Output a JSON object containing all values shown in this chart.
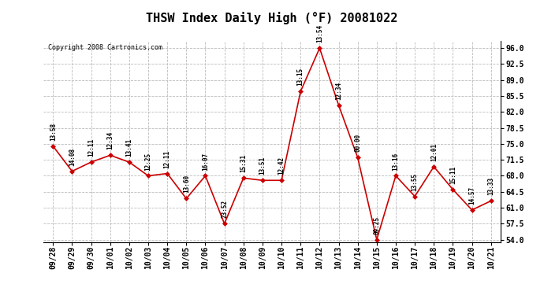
{
  "title": "THSW Index Daily High (°F) 20081022",
  "copyright": "Copyright 2008 Cartronics.com",
  "x_labels": [
    "09/28",
    "09/29",
    "09/30",
    "10/01",
    "10/02",
    "10/03",
    "10/04",
    "10/05",
    "10/06",
    "10/07",
    "10/08",
    "10/09",
    "10/10",
    "10/11",
    "10/12",
    "10/13",
    "10/14",
    "10/15",
    "10/16",
    "10/17",
    "10/18",
    "10/19",
    "10/20",
    "10/21"
  ],
  "y_values": [
    74.5,
    69.0,
    71.0,
    72.5,
    71.0,
    68.0,
    68.5,
    63.0,
    68.0,
    57.5,
    67.5,
    67.0,
    67.0,
    86.5,
    96.0,
    83.5,
    72.0,
    54.0,
    68.0,
    63.5,
    70.0,
    65.0,
    60.5,
    62.5
  ],
  "time_labels": [
    "13:58",
    "14:08",
    "12:11",
    "12:34",
    "13:41",
    "12:25",
    "12:11",
    "13:60",
    "16:07",
    "23:52",
    "15:31",
    "13:51",
    "12:42",
    "13:15",
    "13:54",
    "12:34",
    "00:00",
    "09:25",
    "13:16",
    "13:55",
    "12:01",
    "15:11",
    "14:57",
    "13:33"
  ],
  "y_min": 54.0,
  "y_max": 96.0,
  "y_ticks": [
    54.0,
    57.5,
    61.0,
    64.5,
    68.0,
    71.5,
    75.0,
    78.5,
    82.0,
    85.5,
    89.0,
    92.5,
    96.0
  ],
  "line_color": "#cc0000",
  "marker_color": "#cc0000",
  "background_color": "#ffffff",
  "grid_color": "#bbbbbb",
  "title_fontsize": 11,
  "tick_fontsize": 7,
  "copyright_fontsize": 6
}
